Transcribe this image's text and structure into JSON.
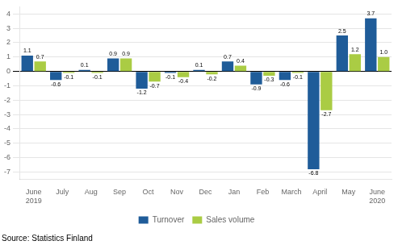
{
  "chart_data": {
    "type": "bar",
    "categories": [
      "June\n2019",
      "July",
      "Aug",
      "Sep",
      "Oct",
      "Nov",
      "Dec",
      "Jan",
      "Feb",
      "March",
      "April",
      "May",
      "June\n2020"
    ],
    "series": [
      {
        "name": "Turnover",
        "color": "#1F5C99",
        "values": [
          1.1,
          -0.6,
          0.1,
          0.9,
          -1.2,
          -0.1,
          0.1,
          0.7,
          -0.9,
          -0.6,
          -6.8,
          2.5,
          3.7
        ],
        "value_labels": [
          "1.1",
          "-0.6",
          "0.1",
          "0.9",
          "-1.2",
          "-0.1",
          "0.1",
          "0.7",
          "-0.9",
          "-0.6",
          "-6.8",
          "2.5",
          "3.7"
        ]
      },
      {
        "name": "Sales volume",
        "color": "#AACC44",
        "values": [
          0.7,
          -0.1,
          -0.1,
          0.9,
          -0.7,
          -0.4,
          -0.2,
          0.4,
          -0.3,
          -0.1,
          -2.7,
          1.2,
          1.0
        ],
        "value_labels": [
          "0.7",
          "-0.1",
          "-0.1",
          "0.9",
          "-0.7",
          "-0.4",
          "-0.2",
          "0.4",
          "-0.3",
          "-0.1",
          "-2.7",
          "1.2",
          "1.0"
        ]
      }
    ],
    "ylim": [
      -7.5,
      4.5
    ],
    "yticks": [
      -7,
      -6,
      -5,
      -4,
      -3,
      -2,
      -1,
      0,
      1,
      2,
      3,
      4
    ],
    "grid": true,
    "legend": "bottom",
    "data_labels": true,
    "annotations": [
      "Source: Statistics Finland"
    ]
  }
}
